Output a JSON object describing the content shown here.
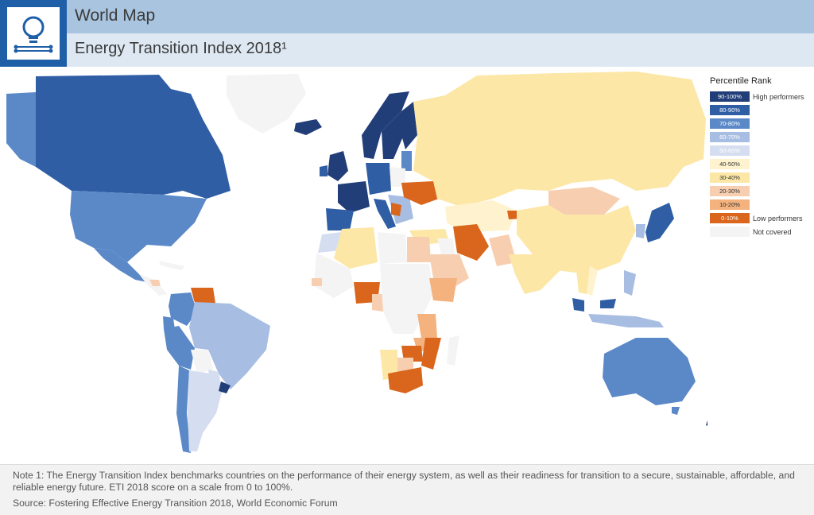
{
  "header": {
    "title": "World Map",
    "subtitle": "Energy Transition Index 2018¹",
    "logo_icon": "lightbulb-circuit-icon"
  },
  "legend": {
    "title": "Percentile Rank",
    "items": [
      {
        "label": "90-100%",
        "color": "#213e78",
        "text_color": "#ffffff",
        "note": "High performers"
      },
      {
        "label": "80-90%",
        "color": "#2f5ea5",
        "text_color": "#ffffff",
        "note": ""
      },
      {
        "label": "70-80%",
        "color": "#5b89c8",
        "text_color": "#ffffff",
        "note": ""
      },
      {
        "label": "60-70%",
        "color": "#a7bde2",
        "text_color": "#ffffff",
        "note": ""
      },
      {
        "label": "50-60%",
        "color": "#d5def0",
        "text_color": "#ffffff",
        "note": ""
      },
      {
        "label": "40-50%",
        "color": "#fff3cf",
        "text_color": "#333333",
        "note": ""
      },
      {
        "label": "30-40%",
        "color": "#fce7a6",
        "text_color": "#333333",
        "note": ""
      },
      {
        "label": "20-30%",
        "color": "#f7cfb0",
        "text_color": "#333333",
        "note": ""
      },
      {
        "label": "10-20%",
        "color": "#f3b27e",
        "text_color": "#333333",
        "note": ""
      },
      {
        "label": "0-10%",
        "color": "#d9661c",
        "text_color": "#ffffff",
        "note": "Low performers"
      },
      {
        "label": "",
        "color": "#f4f4f4",
        "text_color": "#333333",
        "note": "Not covered"
      }
    ]
  },
  "footer": {
    "note": "Note 1: The Energy Transition Index benchmarks countries on the performance of their energy system, as well as their readiness for transition to a secure, sustainable, affordable, and reliable energy future. ETI 2018 score on a scale from 0 to 100%.",
    "source": "Source: Fostering Effective Energy Transition 2018, World Economic Forum"
  }
}
